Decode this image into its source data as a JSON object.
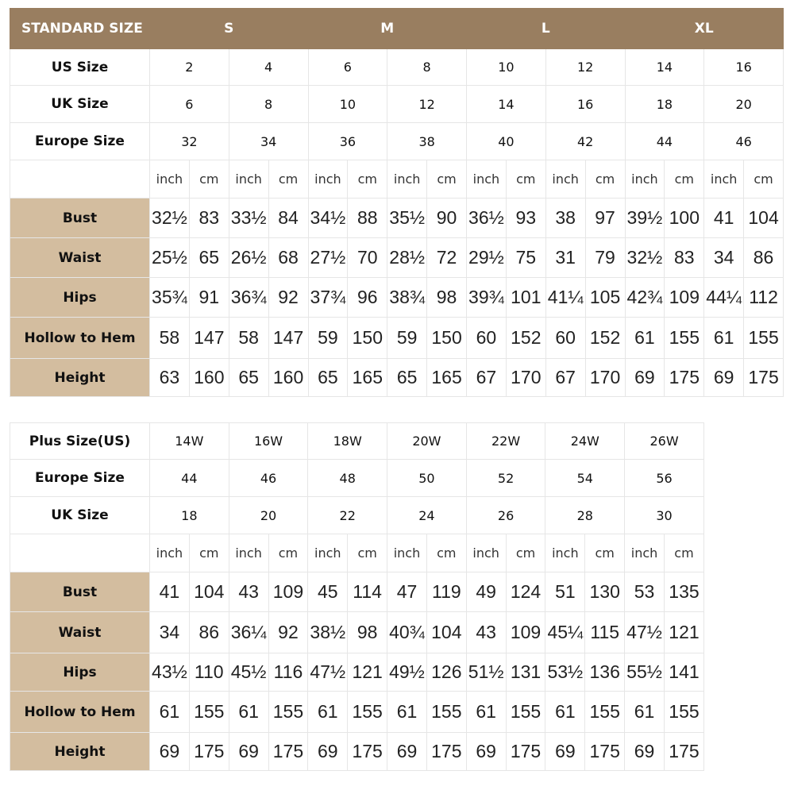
{
  "colors": {
    "header_bg": "#997e60",
    "label_bg": "#d3bd9f"
  },
  "standard": {
    "header_label": "STANDARD SIZE",
    "groups": [
      "S",
      "M",
      "L",
      "XL"
    ],
    "size_rows": [
      {
        "label": "US Size",
        "values": [
          "2",
          "4",
          "6",
          "8",
          "10",
          "12",
          "14",
          "16"
        ]
      },
      {
        "label": "UK Size",
        "values": [
          "6",
          "8",
          "10",
          "12",
          "14",
          "16",
          "18",
          "20"
        ]
      },
      {
        "label": "Europe Size",
        "values": [
          "32",
          "34",
          "36",
          "38",
          "40",
          "42",
          "44",
          "46"
        ]
      }
    ],
    "units": [
      "inch",
      "cm"
    ],
    "measure_rows": [
      {
        "label": "Bust",
        "values": [
          "32½",
          "83",
          "33½",
          "84",
          "34½",
          "88",
          "35½",
          "90",
          "36½",
          "93",
          "38",
          "97",
          "39½",
          "100",
          "41",
          "104"
        ]
      },
      {
        "label": "Waist",
        "values": [
          "25½",
          "65",
          "26½",
          "68",
          "27½",
          "70",
          "28½",
          "72",
          "29½",
          "75",
          "31",
          "79",
          "32½",
          "83",
          "34",
          "86"
        ]
      },
      {
        "label": "Hips",
        "values": [
          "35¾",
          "91",
          "36¾",
          "92",
          "37¾",
          "96",
          "38¾",
          "98",
          "39¾",
          "101",
          "41¼",
          "105",
          "42¾",
          "109",
          "44¼",
          "112"
        ]
      },
      {
        "label": "Hollow to Hem",
        "values": [
          "58",
          "147",
          "58",
          "147",
          "59",
          "150",
          "59",
          "150",
          "60",
          "152",
          "60",
          "152",
          "61",
          "155",
          "61",
          "155"
        ]
      },
      {
        "label": "Height",
        "values": [
          "63",
          "160",
          "65",
          "160",
          "65",
          "165",
          "65",
          "165",
          "67",
          "170",
          "67",
          "170",
          "69",
          "175",
          "69",
          "175"
        ]
      }
    ]
  },
  "plus": {
    "size_rows": [
      {
        "label": "Plus Size(US)",
        "values": [
          "14W",
          "16W",
          "18W",
          "20W",
          "22W",
          "24W",
          "26W"
        ]
      },
      {
        "label": "Europe Size",
        "values": [
          "44",
          "46",
          "48",
          "50",
          "52",
          "54",
          "56"
        ]
      },
      {
        "label": "UK Size",
        "values": [
          "18",
          "20",
          "22",
          "24",
          "26",
          "28",
          "30"
        ]
      }
    ],
    "units": [
      "inch",
      "cm"
    ],
    "measure_rows": [
      {
        "label": "Bust",
        "values": [
          "41",
          "104",
          "43",
          "109",
          "45",
          "114",
          "47",
          "119",
          "49",
          "124",
          "51",
          "130",
          "53",
          "135"
        ]
      },
      {
        "label": "Waist",
        "values": [
          "34",
          "86",
          "36¼",
          "92",
          "38½",
          "98",
          "40¾",
          "104",
          "43",
          "109",
          "45¼",
          "115",
          "47½",
          "121"
        ]
      },
      {
        "label": "Hips",
        "values": [
          "43½",
          "110",
          "45½",
          "116",
          "47½",
          "121",
          "49½",
          "126",
          "51½",
          "131",
          "53½",
          "136",
          "55½",
          "141"
        ]
      },
      {
        "label": "Hollow to Hem",
        "values": [
          "61",
          "155",
          "61",
          "155",
          "61",
          "155",
          "61",
          "155",
          "61",
          "155",
          "61",
          "155",
          "61",
          "155"
        ]
      },
      {
        "label": "Height",
        "values": [
          "69",
          "175",
          "69",
          "175",
          "69",
          "175",
          "69",
          "175",
          "69",
          "175",
          "69",
          "175",
          "69",
          "175"
        ]
      }
    ]
  }
}
